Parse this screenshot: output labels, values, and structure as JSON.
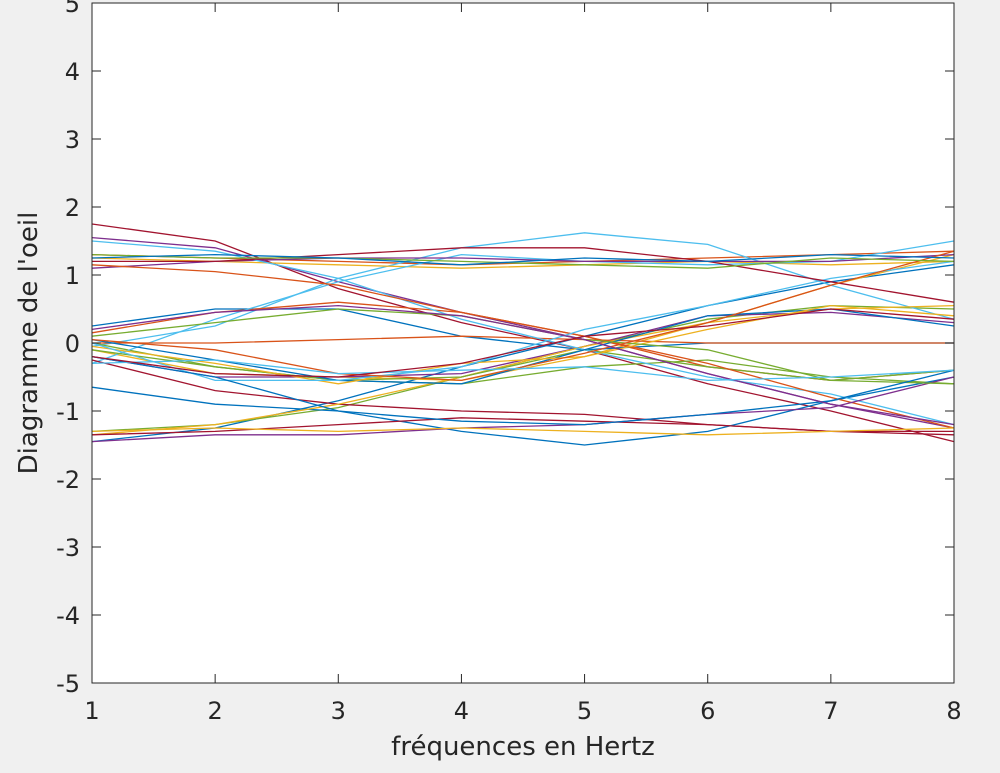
{
  "chart_data": {
    "type": "line",
    "title": "",
    "xlabel": "fréquences en Hertz",
    "ylabel": "Diagramme de l'oeil",
    "xlim": [
      1,
      8
    ],
    "ylim": [
      -5,
      5
    ],
    "xticks": [
      1,
      2,
      3,
      4,
      5,
      6,
      7,
      8
    ],
    "yticks": [
      -5,
      -4,
      -3,
      -2,
      -1,
      0,
      1,
      2,
      3,
      4,
      5
    ],
    "xtick_labels": [
      "1",
      "2",
      "3",
      "4",
      "5",
      "6",
      "7",
      "8"
    ],
    "ytick_labels": [
      "-5",
      "-4",
      "-3",
      "-2",
      "-1",
      "0",
      "1",
      "2",
      "3",
      "4",
      "5"
    ],
    "grid": false,
    "legend": "none",
    "x": [
      1,
      2,
      3,
      4,
      5,
      6,
      7,
      8
    ],
    "series": [
      {
        "color": "#0072BD",
        "values": [
          -1.45,
          -1.25,
          -0.85,
          -0.35,
          0.1,
          0.55,
          0.9,
          1.15
        ]
      },
      {
        "color": "#D95319",
        "values": [
          1.3,
          1.25,
          1.2,
          1.15,
          1.2,
          1.25,
          1.3,
          1.35
        ]
      },
      {
        "color": "#EDB120",
        "values": [
          -0.1,
          -0.45,
          -0.5,
          -0.55,
          -0.2,
          0.3,
          0.85,
          1.3
        ]
      },
      {
        "color": "#7E2F8E",
        "values": [
          1.55,
          1.4,
          0.9,
          0.45,
          0.05,
          -0.45,
          -0.9,
          -1.25
        ]
      },
      {
        "color": "#77AC30",
        "values": [
          -1.3,
          -1.2,
          -0.95,
          -0.5,
          -0.05,
          0.35,
          0.55,
          0.5
        ]
      },
      {
        "color": "#4DBEEE",
        "values": [
          -0.05,
          0.25,
          0.95,
          1.4,
          1.62,
          1.45,
          0.85,
          0.35
        ]
      },
      {
        "color": "#A2142F",
        "values": [
          1.75,
          1.5,
          0.8,
          0.3,
          -0.1,
          -0.6,
          -1.0,
          -1.45
        ]
      },
      {
        "color": "#0072BD",
        "values": [
          0.25,
          0.5,
          0.5,
          0.1,
          -0.1,
          0.0,
          0.0,
          0.0
        ]
      },
      {
        "color": "#D95319",
        "values": [
          0.15,
          0.45,
          0.6,
          0.45,
          0.1,
          -0.35,
          -0.55,
          -0.4
        ]
      },
      {
        "color": "#EDB120",
        "values": [
          1.25,
          1.2,
          1.15,
          1.1,
          1.15,
          1.2,
          1.15,
          1.2
        ]
      },
      {
        "color": "#7E2F8E",
        "values": [
          -0.2,
          -0.5,
          -0.5,
          -0.45,
          -0.05,
          0.4,
          0.45,
          0.3
        ]
      },
      {
        "color": "#77AC30",
        "values": [
          0.0,
          -0.35,
          -0.55,
          -0.6,
          -0.35,
          -0.25,
          -0.5,
          -0.6
        ]
      },
      {
        "color": "#4DBEEE",
        "values": [
          -0.3,
          0.35,
          0.9,
          1.3,
          1.2,
          1.15,
          1.2,
          1.5
        ]
      },
      {
        "color": "#A2142F",
        "values": [
          -0.25,
          -0.7,
          -0.9,
          -1.0,
          -1.05,
          -1.2,
          -1.3,
          -1.3
        ]
      },
      {
        "color": "#0072BD",
        "values": [
          -0.65,
          -0.9,
          -1.0,
          -1.3,
          -1.5,
          -1.3,
          -0.85,
          -0.5
        ]
      },
      {
        "color": "#D95319",
        "values": [
          0.0,
          0.0,
          0.05,
          0.1,
          0.05,
          0.0,
          0.0,
          0.0
        ]
      },
      {
        "color": "#EDB120",
        "values": [
          -1.35,
          -1.2,
          -0.9,
          -0.5,
          -0.05,
          0.3,
          0.5,
          0.55
        ]
      },
      {
        "color": "#7E2F8E",
        "values": [
          1.1,
          1.2,
          1.25,
          1.25,
          1.2,
          1.2,
          1.2,
          1.3
        ]
      },
      {
        "color": "#77AC30",
        "values": [
          -0.1,
          -0.35,
          -0.55,
          -0.5,
          -0.1,
          -0.35,
          -0.55,
          -0.4
        ]
      },
      {
        "color": "#4DBEEE",
        "values": [
          1.5,
          1.35,
          0.95,
          0.35,
          -0.1,
          -0.5,
          -0.75,
          -1.2
        ]
      },
      {
        "color": "#A2142F",
        "values": [
          -1.35,
          -1.3,
          -1.2,
          -1.1,
          -1.15,
          -1.2,
          -1.3,
          -1.35
        ]
      },
      {
        "color": "#0072BD",
        "values": [
          0.05,
          -0.25,
          -0.55,
          -0.6,
          -0.1,
          0.4,
          0.5,
          0.25
        ]
      },
      {
        "color": "#D95319",
        "values": [
          1.15,
          1.05,
          0.85,
          0.45,
          0.1,
          -0.3,
          -0.8,
          -1.25
        ]
      },
      {
        "color": "#EDB120",
        "values": [
          -0.05,
          -0.3,
          -0.6,
          -0.3,
          -0.2,
          0.2,
          0.55,
          0.4
        ]
      },
      {
        "color": "#7E2F8E",
        "values": [
          -1.45,
          -1.35,
          -1.35,
          -1.25,
          -1.2,
          -1.05,
          -0.95,
          -0.5
        ]
      },
      {
        "color": "#77AC30",
        "values": [
          0.1,
          0.3,
          0.5,
          0.4,
          0.05,
          -0.1,
          -0.55,
          -0.6
        ]
      },
      {
        "color": "#4DBEEE",
        "values": [
          0.0,
          -0.55,
          -0.55,
          -0.35,
          0.2,
          0.55,
          0.95,
          1.2
        ]
      },
      {
        "color": "#A2142F",
        "values": [
          1.2,
          1.2,
          1.3,
          1.4,
          1.4,
          1.2,
          0.9,
          0.6
        ]
      },
      {
        "color": "#0072BD",
        "values": [
          -0.2,
          -0.5,
          -1.0,
          -1.15,
          -1.2,
          -1.05,
          -0.85,
          -0.4
        ]
      },
      {
        "color": "#D95319",
        "values": [
          0.05,
          -0.1,
          -0.45,
          -0.55,
          -0.15,
          0.3,
          0.85,
          1.35
        ]
      },
      {
        "color": "#EDB120",
        "values": [
          -1.3,
          -1.25,
          -1.3,
          -1.25,
          -1.3,
          -1.35,
          -1.3,
          -1.25
        ]
      },
      {
        "color": "#7E2F8E",
        "values": [
          0.2,
          0.45,
          0.55,
          0.4,
          0.05,
          -0.45,
          -0.9,
          -1.2
        ]
      },
      {
        "color": "#77AC30",
        "values": [
          1.3,
          1.25,
          1.25,
          1.2,
          1.15,
          1.1,
          1.25,
          1.2
        ]
      },
      {
        "color": "#4DBEEE",
        "values": [
          -0.3,
          -0.25,
          -0.45,
          -0.4,
          -0.35,
          -0.55,
          -0.5,
          -0.4
        ]
      },
      {
        "color": "#A2142F",
        "values": [
          -0.2,
          -0.45,
          -0.5,
          -0.3,
          0.1,
          0.25,
          0.5,
          0.35
        ]
      },
      {
        "color": "#0072BD",
        "values": [
          1.25,
          1.3,
          1.25,
          1.15,
          1.25,
          1.2,
          1.3,
          1.25
        ]
      }
    ]
  }
}
